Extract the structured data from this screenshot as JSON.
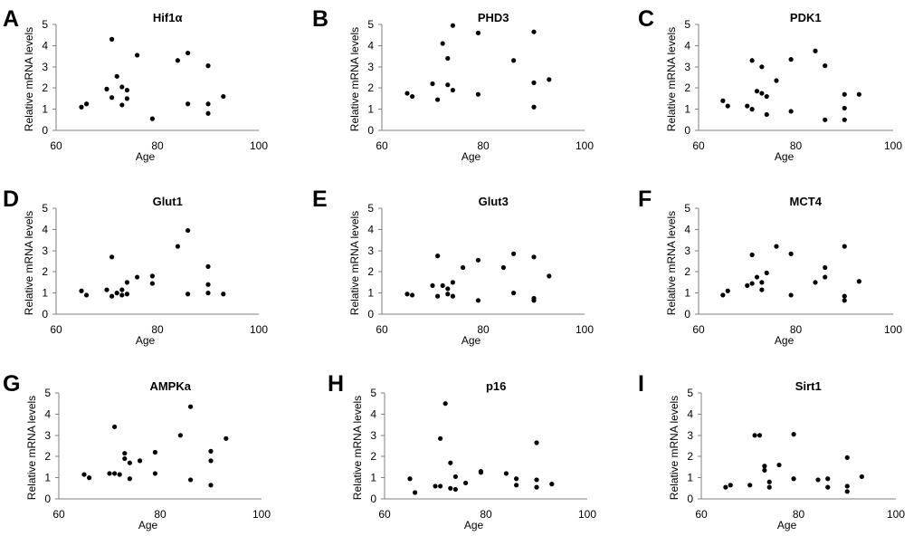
{
  "chart_data": [
    {
      "type": "scatter",
      "panel_letter": "A",
      "title": "Hif1α",
      "xlabel": "Age",
      "ylabel": "Relative mRNA levels",
      "xlim": [
        60,
        100
      ],
      "ylim": [
        0,
        5
      ],
      "xticks": [
        "60",
        "80",
        "100"
      ],
      "yticks": [
        "0",
        "1",
        "2",
        "3",
        "4",
        "5"
      ],
      "x": [
        65,
        66,
        70,
        71,
        71,
        72,
        73,
        73,
        74,
        74,
        76,
        79,
        84,
        86,
        86,
        90,
        90,
        90,
        93
      ],
      "y": [
        1.1,
        1.25,
        1.95,
        4.3,
        1.55,
        2.55,
        1.2,
        2.05,
        1.9,
        1.5,
        3.55,
        0.55,
        3.3,
        3.65,
        1.25,
        3.05,
        1.25,
        0.8,
        1.6
      ]
    },
    {
      "type": "scatter",
      "panel_letter": "B",
      "title": "PHD3",
      "xlabel": "Age",
      "ylabel": "Relative mRNA levels",
      "xlim": [
        60,
        100
      ],
      "ylim": [
        0,
        5
      ],
      "xticks": [
        "60",
        "80",
        "100"
      ],
      "yticks": [
        "0",
        "1",
        "2",
        "3",
        "4",
        "5"
      ],
      "x": [
        65,
        66,
        70,
        71,
        72,
        73,
        73,
        74,
        74,
        79,
        79,
        86,
        90,
        90,
        90,
        93
      ],
      "y": [
        1.75,
        1.6,
        2.2,
        1.45,
        4.1,
        3.4,
        2.15,
        4.95,
        1.9,
        4.6,
        1.7,
        3.3,
        4.65,
        2.25,
        1.1,
        2.4
      ]
    },
    {
      "type": "scatter",
      "panel_letter": "C",
      "title": "PDK1",
      "xlabel": "Age",
      "ylabel": "Relative mRNA levels",
      "xlim": [
        60,
        100
      ],
      "ylim": [
        0,
        5
      ],
      "xticks": [
        "60",
        "80",
        "100"
      ],
      "yticks": [
        "0",
        "1",
        "2",
        "3",
        "4",
        "5"
      ],
      "x": [
        65,
        66,
        70,
        71,
        71,
        72,
        73,
        73,
        74,
        74,
        76,
        79,
        79,
        84,
        86,
        86,
        90,
        90,
        90,
        93
      ],
      "y": [
        1.4,
        1.15,
        1.15,
        1.0,
        3.3,
        1.85,
        3.0,
        1.75,
        1.6,
        0.75,
        2.35,
        3.35,
        0.9,
        3.75,
        3.05,
        0.5,
        1.7,
        1.05,
        0.5,
        1.7
      ]
    },
    {
      "type": "scatter",
      "panel_letter": "D",
      "title": "Glut1",
      "xlabel": "Age",
      "ylabel": "Relative mRNA levels",
      "xlim": [
        60,
        100
      ],
      "ylim": [
        0,
        5
      ],
      "xticks": [
        "60",
        "80",
        "100"
      ],
      "yticks": [
        "0",
        "1",
        "2",
        "3",
        "4",
        "5"
      ],
      "x": [
        65,
        66,
        70,
        71,
        71,
        72,
        73,
        73,
        74,
        74,
        76,
        79,
        79,
        84,
        86,
        86,
        90,
        90,
        90,
        93
      ],
      "y": [
        1.1,
        0.9,
        1.15,
        0.85,
        2.7,
        1.0,
        1.15,
        0.9,
        1.5,
        0.95,
        1.75,
        1.8,
        1.45,
        3.2,
        3.95,
        0.95,
        2.25,
        1.4,
        1.0,
        0.95
      ]
    },
    {
      "type": "scatter",
      "panel_letter": "E",
      "title": "Glut3",
      "xlabel": "Age",
      "ylabel": "Relative mRNA levels",
      "xlim": [
        60,
        100
      ],
      "ylim": [
        0,
        5
      ],
      "xticks": [
        "60",
        "80",
        "100"
      ],
      "yticks": [
        "0",
        "1",
        "2",
        "3",
        "4",
        "5"
      ],
      "x": [
        65,
        66,
        70,
        71,
        71,
        72,
        73,
        73,
        74,
        74,
        76,
        79,
        79,
        84,
        86,
        86,
        90,
        90,
        90,
        93
      ],
      "y": [
        0.95,
        0.9,
        1.35,
        2.75,
        0.85,
        1.35,
        1.2,
        0.95,
        1.5,
        0.85,
        2.2,
        2.55,
        0.65,
        2.2,
        2.85,
        1.0,
        2.7,
        0.75,
        0.65,
        1.8
      ]
    },
    {
      "type": "scatter",
      "panel_letter": "F",
      "title": "MCT4",
      "xlabel": "Age",
      "ylabel": "Relative mRNA levels",
      "xlim": [
        60,
        100
      ],
      "ylim": [
        0,
        5
      ],
      "xticks": [
        "60",
        "80",
        "100"
      ],
      "yticks": [
        "0",
        "1",
        "2",
        "3",
        "4",
        "5"
      ],
      "x": [
        65,
        66,
        70,
        71,
        71,
        72,
        73,
        73,
        74,
        76,
        79,
        79,
        84,
        86,
        86,
        90,
        90,
        90,
        93
      ],
      "y": [
        0.9,
        1.1,
        1.35,
        2.8,
        1.45,
        1.75,
        1.5,
        1.15,
        1.95,
        3.2,
        2.85,
        0.9,
        1.5,
        2.2,
        1.75,
        3.2,
        0.85,
        0.65,
        1.55
      ]
    },
    {
      "type": "scatter",
      "panel_letter": "G",
      "title": "AMPKa",
      "xlabel": "Age",
      "ylabel": "Relative mRNA levels",
      "xlim": [
        60,
        100
      ],
      "ylim": [
        0,
        5
      ],
      "xticks": [
        "60",
        "80",
        "100"
      ],
      "yticks": [
        "0",
        "1",
        "2",
        "3",
        "4",
        "5"
      ],
      "x": [
        65,
        66,
        70,
        71,
        71,
        72,
        73,
        73,
        74,
        74,
        76,
        79,
        79,
        84,
        86,
        86,
        90,
        90,
        90,
        93
      ],
      "y": [
        1.15,
        1.0,
        1.2,
        3.4,
        1.2,
        1.15,
        2.15,
        1.9,
        1.7,
        0.95,
        1.8,
        2.2,
        1.2,
        3.0,
        4.35,
        0.9,
        2.25,
        1.8,
        0.65,
        2.85
      ]
    },
    {
      "type": "scatter",
      "panel_letter": "H",
      "title": "p16",
      "xlabel": "Age",
      "ylabel": "Relative mRNA levels",
      "xlim": [
        60,
        100
      ],
      "ylim": [
        0,
        5
      ],
      "xticks": [
        "60",
        "80",
        "100"
      ],
      "yticks": [
        "0",
        "1",
        "2",
        "3",
        "4",
        "5"
      ],
      "x": [
        65,
        66,
        70,
        71,
        71,
        72,
        73,
        73,
        74,
        74,
        76,
        79,
        79,
        84,
        86,
        86,
        90,
        90,
        90,
        93
      ],
      "y": [
        0.95,
        0.3,
        0.6,
        2.85,
        0.6,
        4.5,
        1.7,
        0.5,
        1.05,
        0.45,
        0.75,
        1.3,
        1.25,
        1.2,
        0.95,
        0.65,
        2.65,
        0.9,
        0.55,
        0.7
      ]
    },
    {
      "type": "scatter",
      "panel_letter": "I",
      "title": "Sirt1",
      "xlabel": "Age",
      "ylabel": "Relative mRNA levels",
      "xlim": [
        60,
        100
      ],
      "ylim": [
        0,
        5
      ],
      "xticks": [
        "60",
        "80",
        "100"
      ],
      "yticks": [
        "0",
        "1",
        "2",
        "3",
        "4",
        "5"
      ],
      "x": [
        65,
        66,
        70,
        71,
        72,
        73,
        73,
        74,
        74,
        76,
        79,
        79,
        84,
        86,
        86,
        90,
        90,
        90,
        93
      ],
      "y": [
        0.55,
        0.65,
        0.65,
        3.0,
        3.0,
        1.55,
        1.35,
        0.8,
        0.55,
        1.6,
        3.05,
        0.95,
        0.9,
        0.95,
        0.55,
        1.95,
        0.6,
        0.35,
        1.05
      ]
    }
  ]
}
